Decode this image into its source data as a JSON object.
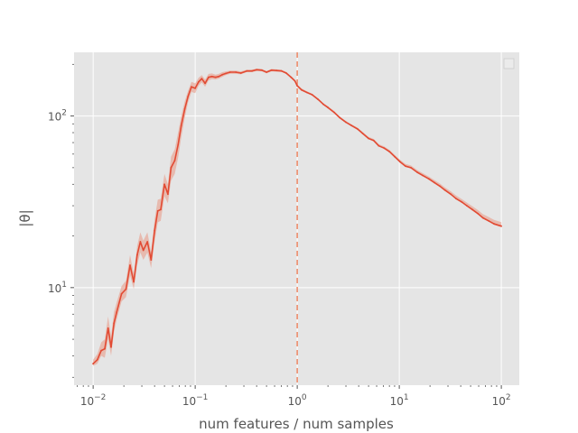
{
  "chart_data": {
    "type": "line",
    "title": "",
    "xlabel": "num features / num samples",
    "ylabel": "|θ|",
    "x_scale": "log",
    "y_scale": "log",
    "xlim": [
      0.0065,
      150
    ],
    "ylim": [
      2.7,
      235
    ],
    "x_ticks": [
      {
        "value": 0.01,
        "base": "10",
        "exp": "−2"
      },
      {
        "value": 0.1,
        "base": "10",
        "exp": "−1"
      },
      {
        "value": 1,
        "base": "10",
        "exp": "0"
      },
      {
        "value": 10,
        "base": "10",
        "exp": "1"
      },
      {
        "value": 100,
        "base": "10",
        "exp": "2"
      }
    ],
    "y_ticks": [
      {
        "value": 10,
        "base": "10",
        "exp": "1"
      },
      {
        "value": 100,
        "base": "10",
        "exp": "2"
      }
    ],
    "grid": true,
    "legend": "top-right (empty)",
    "vline": {
      "x": 1.0,
      "style": "dashed",
      "color": "#ee8866"
    },
    "colors": {
      "line": "#e24a33",
      "band": "#e8a898",
      "plot_bg": "#e5e5e5",
      "grid": "#ffffff",
      "text": "#555555"
    },
    "series": [
      {
        "x": [
          0.01,
          0.011,
          0.012,
          0.013,
          0.014,
          0.015,
          0.016,
          0.017,
          0.019,
          0.021,
          0.023,
          0.025,
          0.027,
          0.029,
          0.031,
          0.034,
          0.037,
          0.04,
          0.043,
          0.046,
          0.05,
          0.054,
          0.058,
          0.063,
          0.068,
          0.073,
          0.079,
          0.085,
          0.092,
          0.1,
          0.108,
          0.116,
          0.125,
          0.135,
          0.146,
          0.158,
          0.17,
          0.184,
          0.2,
          0.22,
          0.25,
          0.28,
          0.32,
          0.36,
          0.4,
          0.45,
          0.5,
          0.56,
          0.63,
          0.7,
          0.78,
          0.87,
          0.95,
          1.0,
          1.1,
          1.25,
          1.4,
          1.6,
          1.8,
          2.0,
          2.3,
          2.6,
          3.0,
          3.4,
          3.9,
          4.4,
          5.0,
          5.6,
          6.3,
          7.1,
          8.0,
          9.0,
          10.2,
          11.5,
          13,
          15,
          17,
          19.5,
          22,
          25,
          28,
          32,
          36,
          41,
          46,
          52,
          59,
          66,
          75,
          85,
          100
        ],
        "y": [
          3.6,
          3.8,
          4.3,
          4.4,
          5.8,
          4.5,
          6.2,
          7.2,
          9.2,
          9.8,
          13.5,
          10.8,
          15.5,
          18.5,
          16.5,
          18.5,
          14.5,
          21.5,
          28,
          28.5,
          40,
          35,
          50,
          55,
          68,
          88,
          110,
          130,
          148,
          145,
          158,
          165,
          155,
          168,
          170,
          168,
          170,
          174,
          177,
          180,
          180,
          178,
          183,
          183,
          186,
          185,
          180,
          185,
          184,
          183,
          178,
          168,
          160,
          150,
          142,
          137,
          133,
          125,
          117,
          112,
          105,
          98,
          92,
          88,
          84,
          79,
          74,
          72,
          67,
          65,
          62,
          58,
          54,
          51,
          50,
          47,
          45,
          43,
          41,
          39,
          37,
          35,
          33,
          31.5,
          30,
          28.5,
          27,
          25.5,
          24.5,
          23.5,
          22.8
        ],
        "lower": [
          3.5,
          3.6,
          4.0,
          3.9,
          5.0,
          4.0,
          5.5,
          6.5,
          8.3,
          8.8,
          11.8,
          9.8,
          13.5,
          16.0,
          14.5,
          16.0,
          13.0,
          18.5,
          24.0,
          24.5,
          34.0,
          31.0,
          42.0,
          46.0,
          57.0,
          75.0,
          98.0,
          120.0,
          138.0,
          136.0,
          150.0,
          157.0,
          148.0,
          161.0,
          164.0,
          163.0,
          165.0,
          169.0,
          173.0,
          176.0,
          176.0,
          175.0,
          180.0,
          180.0,
          183.0,
          182.0,
          177.0,
          182.0,
          181.0,
          181.0,
          176.0,
          166.0,
          158.0,
          148.0,
          140.0,
          136.0,
          132.0,
          124.0,
          116.0,
          111.0,
          104.0,
          97.0,
          91.0,
          87.5,
          83.5,
          78.5,
          73.5,
          71.5,
          66.5,
          64.5,
          61.5,
          57.5,
          53.5,
          50.5,
          49.5,
          46.6,
          44.6,
          42.6,
          40.6,
          38.6,
          36.6,
          34.6,
          32.7,
          31.2,
          29.7,
          28.2,
          26.7,
          25.2,
          24.2,
          23.2,
          22.5
        ],
        "upper": [
          3.8,
          4.1,
          4.8,
          5.0,
          6.8,
          5.2,
          7.2,
          8.2,
          10.2,
          11.0,
          15.5,
          12.0,
          17.5,
          21.0,
          18.8,
          21.0,
          16.2,
          25.0,
          32.5,
          33.0,
          46.0,
          40.0,
          58.0,
          64.0,
          80.0,
          100.0,
          122.0,
          140.0,
          158.0,
          155.0,
          167.0,
          173.0,
          163.0,
          176.0,
          177.0,
          174.0,
          176.0,
          180.0,
          182.0,
          184.0,
          184.0,
          182.0,
          186.0,
          186.0,
          189.0,
          188.0,
          183.0,
          188.0,
          187.0,
          186.0,
          181.0,
          171.0,
          163.0,
          153.0,
          145.0,
          139.0,
          135.0,
          127.0,
          119.0,
          114.0,
          107.0,
          99.5,
          93.5,
          89.5,
          85.5,
          80.5,
          75.5,
          73.5,
          68.5,
          66.5,
          63.5,
          59.5,
          55.5,
          52.5,
          51.5,
          48.4,
          46.4,
          44.4,
          42.4,
          40.4,
          38.4,
          36.4,
          34.4,
          32.8,
          31.3,
          29.8,
          28.3,
          26.8,
          25.8,
          24.8,
          24.1
        ]
      }
    ]
  }
}
